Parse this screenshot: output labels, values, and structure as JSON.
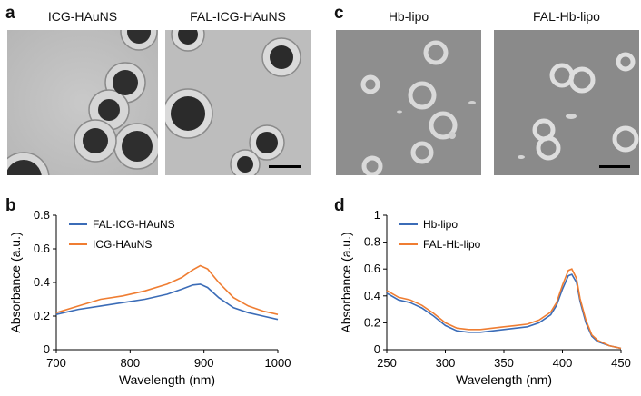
{
  "panels": {
    "a": {
      "letter": "a",
      "images": [
        {
          "label": "ICG-HAuNS"
        },
        {
          "label": "FAL-ICG-HAuNS"
        }
      ]
    },
    "c": {
      "letter": "c",
      "images": [
        {
          "label": "Hb-lipo"
        },
        {
          "label": "FAL-Hb-lipo"
        }
      ]
    },
    "b": {
      "letter": "b"
    },
    "d": {
      "letter": "d"
    }
  },
  "colors": {
    "blue": "#3b6cb7",
    "orange": "#ef7d32"
  },
  "chart_data": [
    {
      "panel": "b",
      "type": "line",
      "xlabel": "Wavelength (nm)",
      "ylabel": "Absorbance (a.u.)",
      "xlim": [
        700,
        1000
      ],
      "ylim": [
        0,
        0.8
      ],
      "xticks": [
        "700",
        "800",
        "900",
        "1000"
      ],
      "yticks": [
        "0",
        "0.2",
        "0.4",
        "0.6",
        "0.8"
      ],
      "legend_position": "top-left",
      "series": [
        {
          "name": "FAL-ICG-HAuNS",
          "color": "#3b6cb7",
          "x": [
            700,
            730,
            760,
            790,
            820,
            850,
            870,
            885,
            895,
            905,
            920,
            940,
            960,
            980,
            1000
          ],
          "y": [
            0.21,
            0.24,
            0.26,
            0.28,
            0.3,
            0.33,
            0.36,
            0.385,
            0.39,
            0.37,
            0.31,
            0.25,
            0.22,
            0.2,
            0.18
          ]
        },
        {
          "name": "ICG-HAuNS",
          "color": "#ef7d32",
          "x": [
            700,
            730,
            760,
            790,
            820,
            850,
            870,
            885,
            895,
            905,
            920,
            940,
            960,
            980,
            1000
          ],
          "y": [
            0.22,
            0.26,
            0.3,
            0.32,
            0.35,
            0.39,
            0.43,
            0.475,
            0.5,
            0.48,
            0.4,
            0.31,
            0.26,
            0.23,
            0.21
          ]
        }
      ]
    },
    {
      "panel": "d",
      "type": "line",
      "xlabel": "Wavelength (nm)",
      "ylabel": "Absorbance (a.u.)",
      "xlim": [
        250,
        450
      ],
      "ylim": [
        0,
        1
      ],
      "xticks": [
        "250",
        "300",
        "350",
        "400",
        "450"
      ],
      "yticks": [
        "0",
        "0.2",
        "0.4",
        "0.6",
        "0.8",
        "1"
      ],
      "legend_position": "top-left",
      "series": [
        {
          "name": "Hb-lipo",
          "color": "#3b6cb7",
          "x": [
            250,
            260,
            270,
            280,
            290,
            300,
            310,
            320,
            330,
            340,
            350,
            360,
            370,
            380,
            390,
            395,
            400,
            405,
            408,
            412,
            415,
            420,
            425,
            430,
            440,
            450
          ],
          "y": [
            0.42,
            0.37,
            0.35,
            0.31,
            0.25,
            0.18,
            0.14,
            0.13,
            0.13,
            0.14,
            0.15,
            0.16,
            0.17,
            0.2,
            0.26,
            0.33,
            0.45,
            0.55,
            0.56,
            0.5,
            0.36,
            0.2,
            0.1,
            0.06,
            0.03,
            0.01
          ]
        },
        {
          "name": "FAL-Hb-lipo",
          "color": "#ef7d32",
          "x": [
            250,
            260,
            270,
            280,
            290,
            300,
            310,
            320,
            330,
            340,
            350,
            360,
            370,
            380,
            390,
            395,
            400,
            405,
            408,
            412,
            415,
            420,
            425,
            430,
            440,
            450
          ],
          "y": [
            0.44,
            0.39,
            0.37,
            0.33,
            0.27,
            0.2,
            0.16,
            0.15,
            0.15,
            0.16,
            0.17,
            0.18,
            0.19,
            0.22,
            0.28,
            0.35,
            0.48,
            0.59,
            0.6,
            0.53,
            0.38,
            0.22,
            0.11,
            0.07,
            0.03,
            0.01
          ]
        }
      ]
    }
  ]
}
